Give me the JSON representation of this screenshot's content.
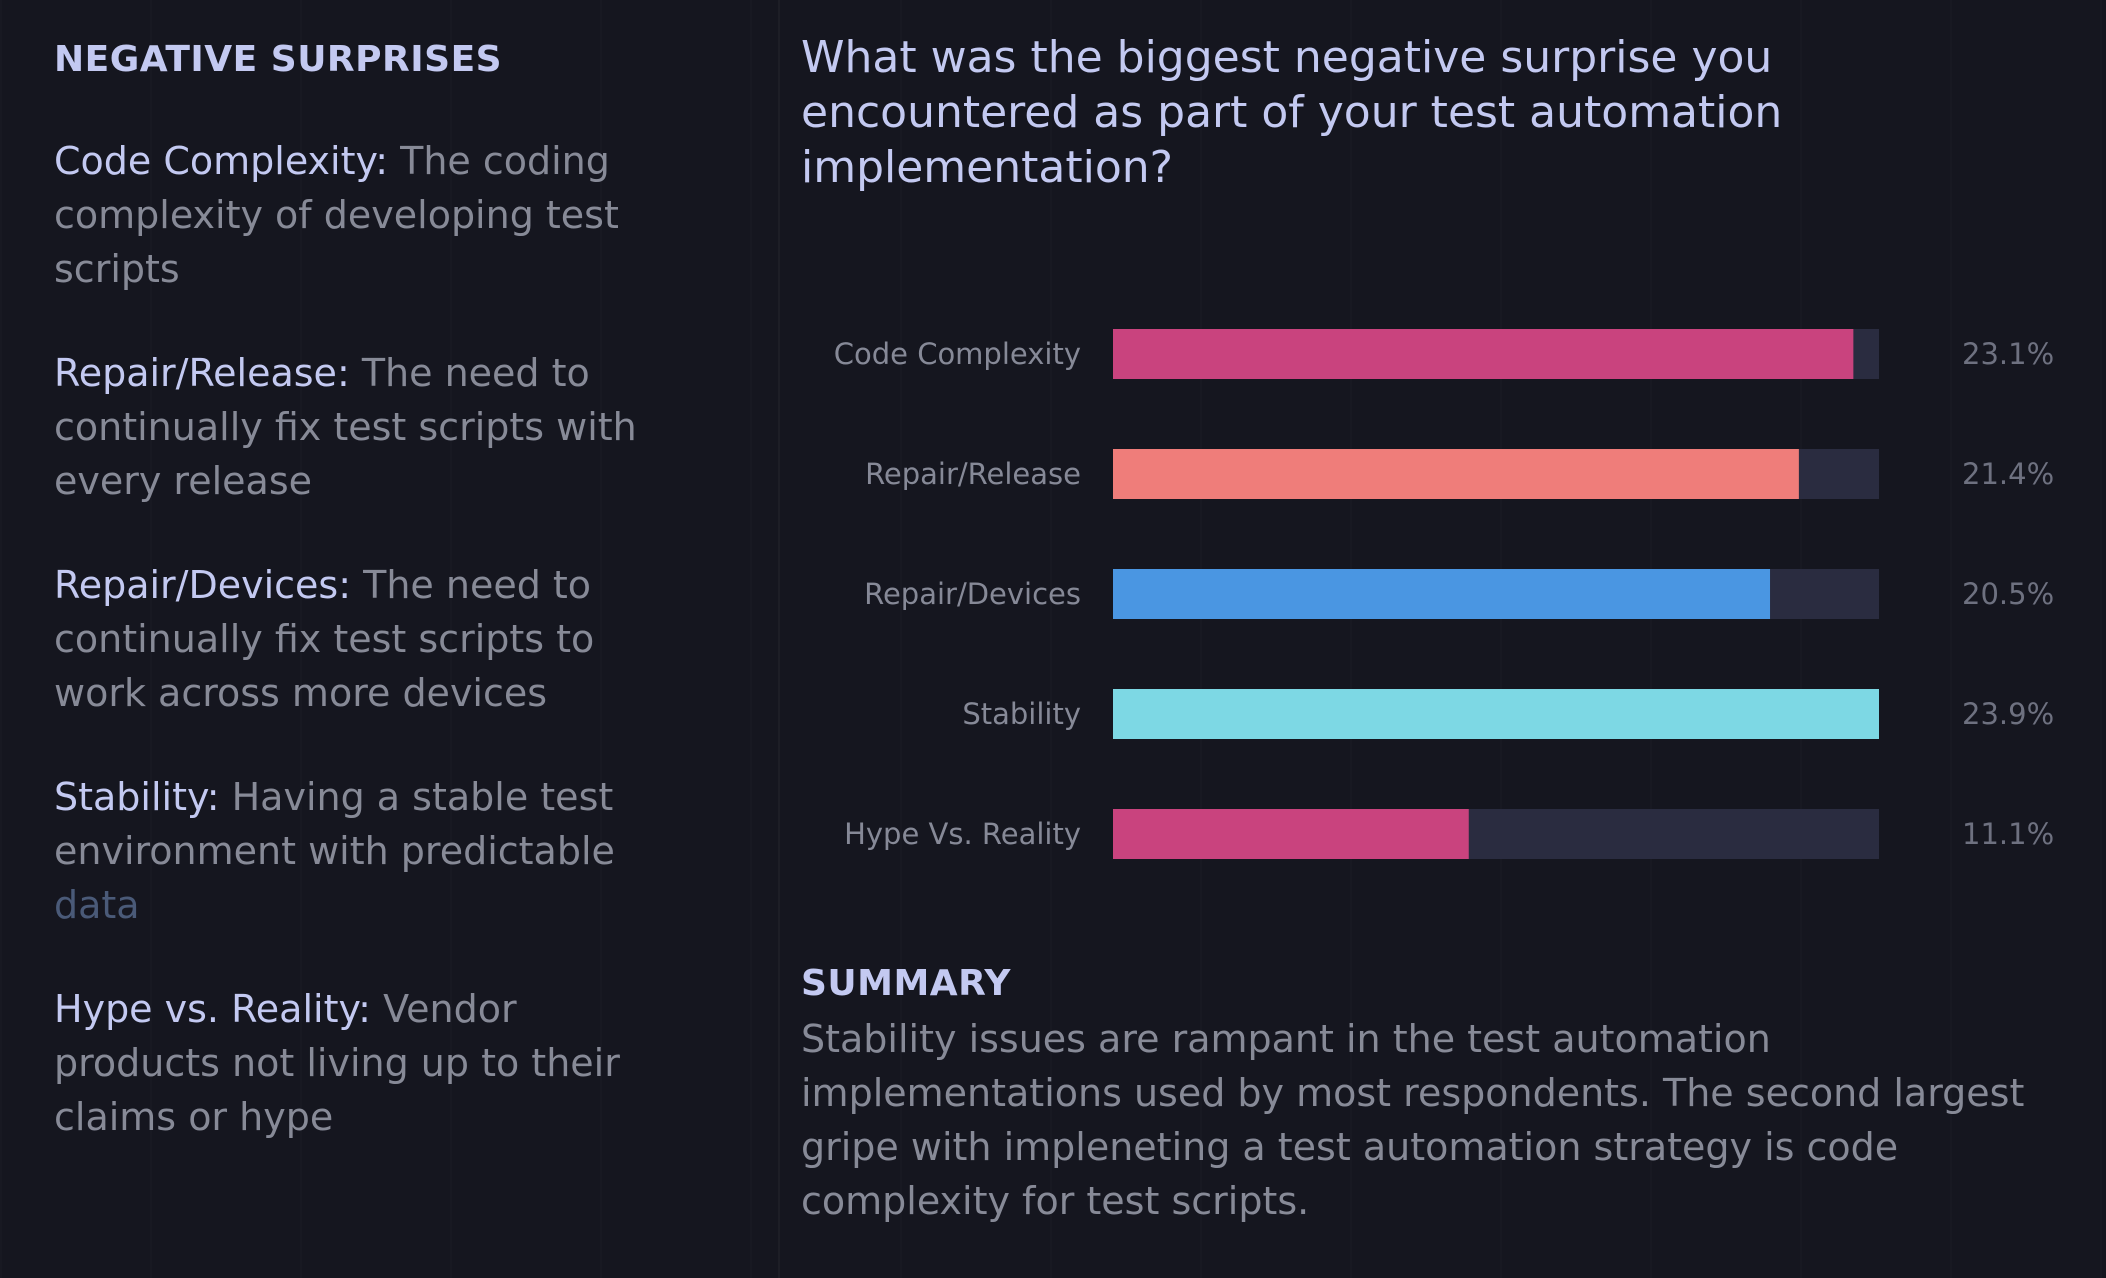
{
  "left": {
    "heading": "NEGATIVE SURPRISES",
    "definitions": [
      {
        "term": "Code Complexity:",
        "text": " The coding complexity of developing test scripts",
        "faded": ""
      },
      {
        "term": "Repair/Release:",
        "text": " The need to continually fix test scripts with every release",
        "faded": ""
      },
      {
        "term": "Repair/Devices:",
        "text": " The need to continually fix test scripts to work across more devices",
        "faded": ""
      },
      {
        "term": "Stability:",
        "text": " Having a stable test environment with predictable ",
        "faded": "data"
      },
      {
        "term": "Hype vs. Reality:",
        "text": " Vendor products not living up to their claims or hype",
        "faded": ""
      }
    ]
  },
  "question": "What was the biggest negative surprise you encountered as part of your test automation implementation?",
  "summary": {
    "heading": "SUMMARY",
    "text": "Stability issues are rampant in the test automation implementations used by most respondents. The second largest gripe with impleneting a test automation strategy is code complexity for test scripts."
  },
  "chart_data": {
    "type": "bar",
    "orientation": "horizontal",
    "categories": [
      "Code Complexity",
      "Repair/Release",
      "Repair/Devices",
      "Stability",
      "Hype Vs. Reality"
    ],
    "values": [
      23.1,
      21.4,
      20.5,
      23.9,
      11.1
    ],
    "value_labels": [
      "23.1%",
      "21.4%",
      "20.5%",
      "23.9%",
      "11.1%"
    ],
    "colors": [
      "#c9437e",
      "#ef7d7a",
      "#4a96e2",
      "#7dd8e4",
      "#c9437e"
    ],
    "track_color": "#2a2c40",
    "xlim": [
      0,
      23.9
    ],
    "title": "",
    "xlabel": "",
    "ylabel": ""
  }
}
